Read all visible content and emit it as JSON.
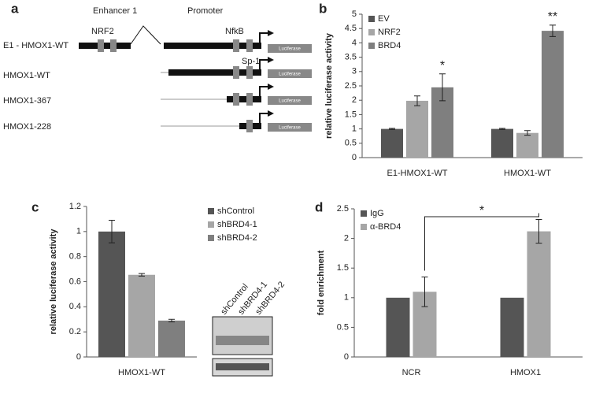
{
  "diagram": {
    "panel_label": "a",
    "enhancer_label": "Enhancer 1",
    "promoter_label": "Promoter",
    "site_labels": [
      "NRF2",
      "NfkB",
      "Sp-1"
    ],
    "rows": [
      {
        "label": "E1 - HMOX1-WT",
        "reporter": "Luciferase"
      },
      {
        "label": "HMOX1-WT",
        "reporter": "Luciferase"
      },
      {
        "label": "HMOX1-367",
        "reporter": "Luciferase"
      },
      {
        "label": "HMOX1-228",
        "reporter": "Luciferase"
      }
    ]
  },
  "chart_data": [
    {
      "type": "bar",
      "panel_label": "b",
      "ylabel": "relative luciferase activity",
      "categories": [
        "E1-HMOX1-WT",
        "HMOX1-WT"
      ],
      "series": [
        {
          "name": "EV",
          "color": "#555555",
          "values": [
            1,
            1
          ],
          "errors": [
            0.02,
            0.02
          ]
        },
        {
          "name": "NRF2",
          "color": "#a6a6a6",
          "values": [
            1.98,
            0.86
          ],
          "errors": [
            0.17,
            0.08
          ]
        },
        {
          "name": "BRD4",
          "color": "#7f7f7f",
          "values": [
            2.45,
            4.42
          ],
          "errors": [
            0.47,
            0.2
          ]
        }
      ],
      "annotations": [
        "*",
        "**"
      ],
      "ylim": [
        0,
        5
      ],
      "yticks": [
        0,
        0.5,
        1,
        1.5,
        2,
        2.5,
        3,
        3.5,
        4,
        4.5,
        5
      ],
      "legend": "top-left"
    },
    {
      "type": "bar",
      "panel_label": "c",
      "ylabel": "relative luciferase activity",
      "categories": [
        "HMOX1-WT"
      ],
      "series": [
        {
          "name": "shControl",
          "color": "#555555",
          "values": [
            1
          ],
          "errors": [
            0.09
          ]
        },
        {
          "name": "shBRD4-1",
          "color": "#a6a6a6",
          "values": [
            0.655
          ],
          "errors": [
            0.01
          ]
        },
        {
          "name": "shBRD4-2",
          "color": "#7f7f7f",
          "values": [
            0.29
          ],
          "errors": [
            0.01
          ]
        }
      ],
      "blot_labels": [
        "shControl",
        "shBRD4-1",
        "shBRD4-2"
      ],
      "ylim": [
        0,
        1.2
      ],
      "yticks": [
        0,
        0.2,
        0.4,
        0.6,
        0.8,
        1,
        1.2
      ],
      "legend": "top-right"
    },
    {
      "type": "bar",
      "panel_label": "d",
      "ylabel": "fold enrichment",
      "categories": [
        "NCR",
        "HMOX1"
      ],
      "series": [
        {
          "name": "IgG",
          "color": "#555555",
          "values": [
            1,
            1
          ],
          "errors": [
            null,
            null
          ]
        },
        {
          "name": "α-BRD4",
          "color": "#a6a6a6",
          "values": [
            1.1,
            2.12
          ],
          "errors": [
            0.25,
            0.2
          ]
        }
      ],
      "significance": "*",
      "ylim": [
        0,
        2.5
      ],
      "yticks": [
        0,
        0.5,
        1,
        1.5,
        2,
        2.5
      ],
      "legend": "top-left"
    }
  ]
}
